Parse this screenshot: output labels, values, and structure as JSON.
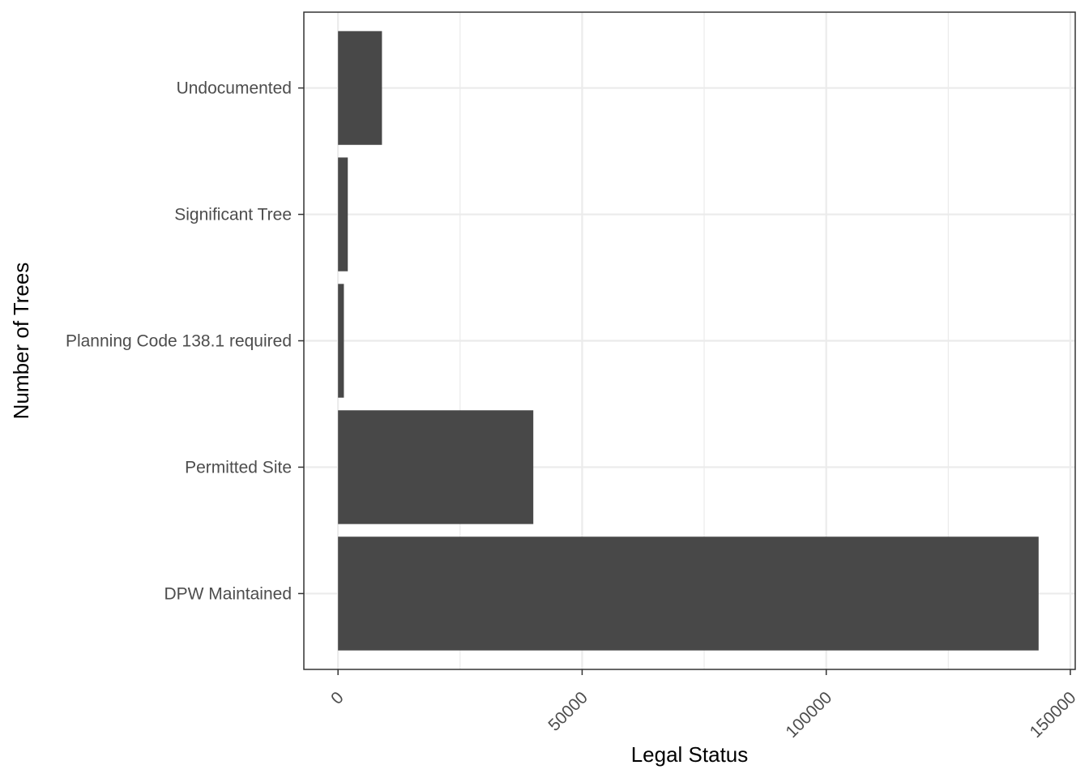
{
  "chart_data": {
    "type": "bar",
    "orientation": "horizontal",
    "title": "",
    "xlabel": "Legal Status",
    "ylabel": "Number of Trees",
    "categories": [
      "DPW Maintained",
      "Permitted Site",
      "Planning Code 138.1 required",
      "Significant Tree",
      "Undocumented"
    ],
    "values": [
      143500,
      40000,
      1200,
      2000,
      9000
    ],
    "xlim": [
      -7000,
      151000
    ],
    "x_ticks": [
      0,
      50000,
      100000,
      150000
    ],
    "x_tick_labels": [
      "0",
      "50000",
      "100000",
      "150000"
    ],
    "grid": true,
    "legend": "none",
    "colors": {
      "bar": "#484848",
      "grid": "#ebebeb",
      "panel_border": "#333333",
      "tick_label": "#4d4d4d"
    }
  }
}
